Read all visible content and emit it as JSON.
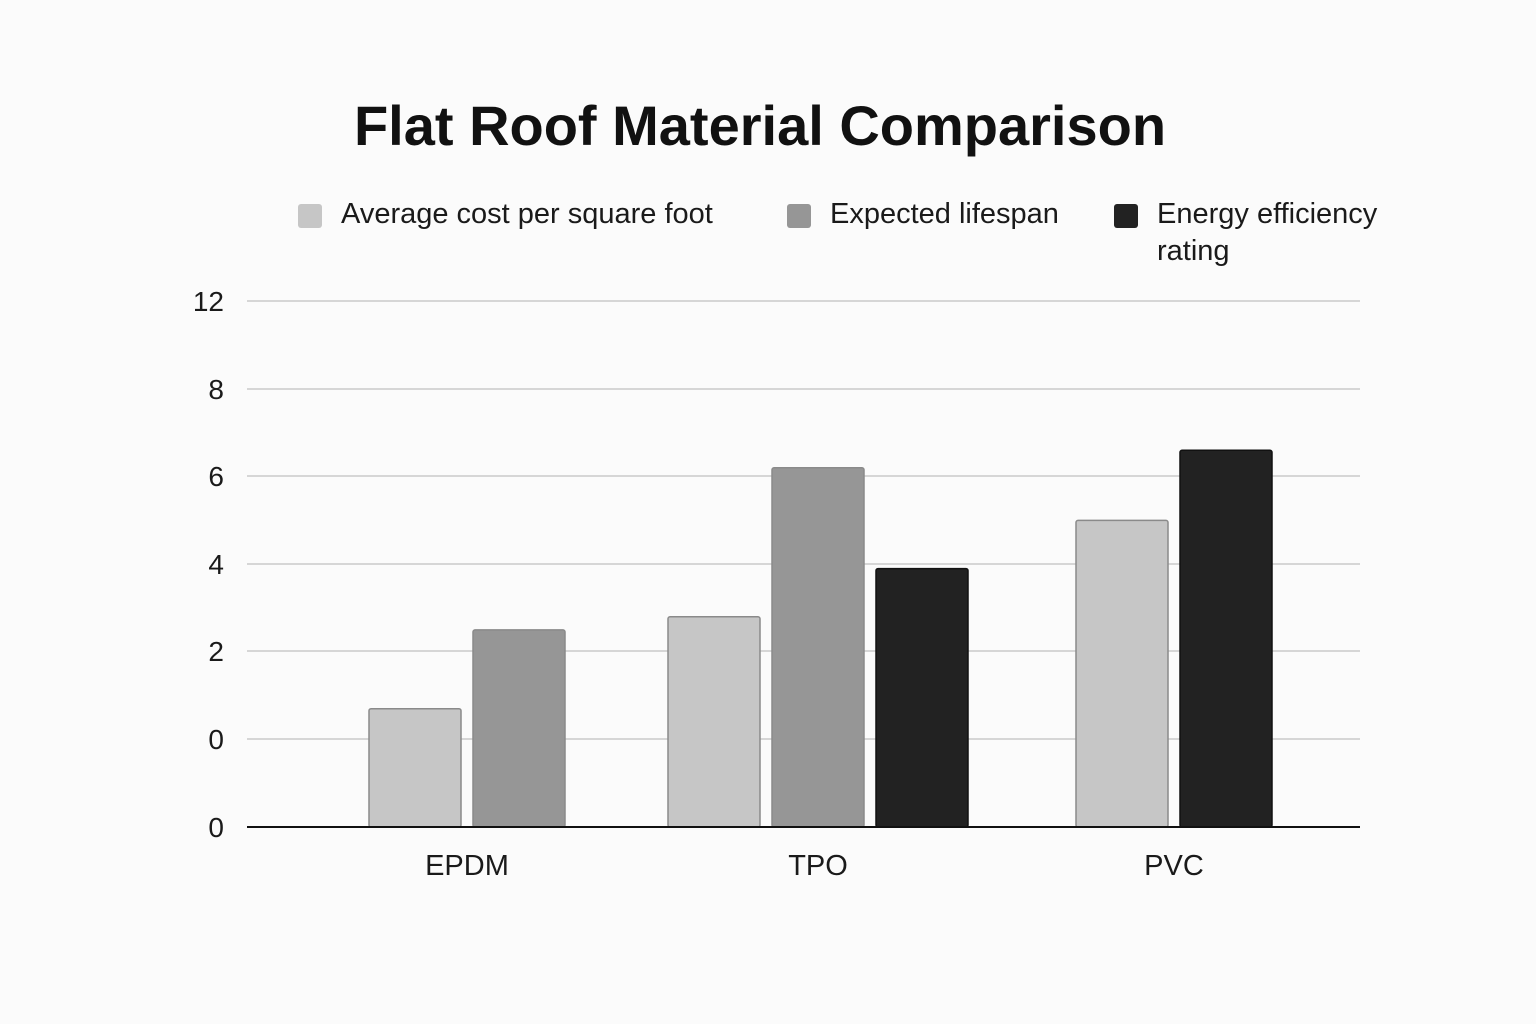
{
  "chart_data": {
    "type": "bar",
    "title": "Flat Roof Material Comparison",
    "categories": [
      "EPDM",
      "TPO",
      "PVC"
    ],
    "series": [
      {
        "name": "Average cost per square foot",
        "values": [
          2.7,
          4.8,
          7.0
        ],
        "color": "#c6c6c6"
      },
      {
        "name": "Expected lifespan",
        "values": [
          4.5,
          8.2,
          null
        ],
        "color": "#969696"
      },
      {
        "name": "Energy efficiency rating",
        "values": [
          null,
          5.9,
          8.6
        ],
        "color": "#222222"
      }
    ],
    "y_tick_labels": [
      "12",
      "8",
      "6",
      "4",
      "2",
      "0",
      "0"
    ],
    "legend_position": "top",
    "grid": true
  }
}
